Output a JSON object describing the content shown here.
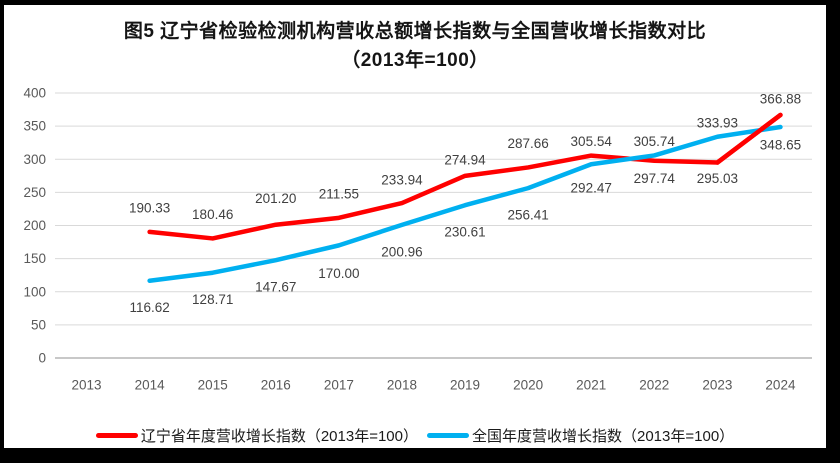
{
  "figure": {
    "title_line1": "图5  辽宁省检验检测机构营收总额增长指数与全国营收增长指数对比",
    "title_line2": "（2013年=100）"
  },
  "chart_data": {
    "type": "line",
    "categories": [
      "2013",
      "2014",
      "2015",
      "2016",
      "2017",
      "2018",
      "2019",
      "2020",
      "2021",
      "2022",
      "2023",
      "2024"
    ],
    "series": [
      {
        "name": "辽宁省年度营收增长指数（2013年=100）",
        "color": "#FF0000",
        "values": [
          null,
          190.33,
          180.46,
          201.2,
          211.55,
          233.94,
          274.94,
          287.66,
          305.54,
          297.74,
          295.03,
          366.88
        ],
        "label_dy": [
          0,
          -24,
          -24,
          -26,
          -24,
          -23,
          -16,
          -24,
          -14,
          18,
          16,
          -16
        ]
      },
      {
        "name": "全国年度营收增长指数（2013年=100）",
        "color": "#00B0F0",
        "values": [
          null,
          116.62,
          128.71,
          147.67,
          170.0,
          200.96,
          230.61,
          256.41,
          292.47,
          305.74,
          333.93,
          348.65
        ],
        "label_dy": [
          0,
          27,
          27,
          27,
          28,
          27,
          27,
          27,
          24,
          -14,
          -14,
          18
        ]
      }
    ],
    "ylim": [
      0,
      400
    ],
    "ytick_step": 50,
    "yticks": [
      "0",
      "50",
      "100",
      "150",
      "200",
      "250",
      "300",
      "350",
      "400"
    ],
    "grid": true,
    "data_labels": true,
    "legend_position": "bottom",
    "gridline_color": "#D9D9D9",
    "zeroline_color": "#A6A6A6",
    "axis_label_color": "#595959",
    "data_label_color": "#404040"
  }
}
